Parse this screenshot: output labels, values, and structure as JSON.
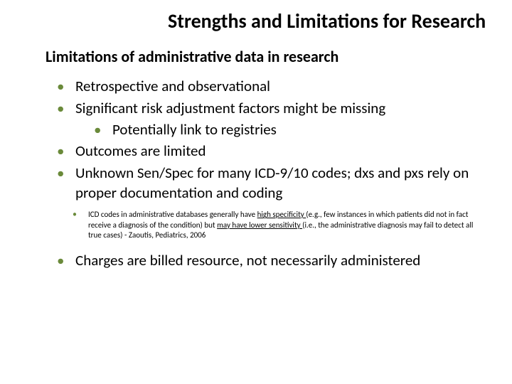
{
  "title": "Strengths and Limitations for Research",
  "subtitle": "Limitations of administrative data in research",
  "bullets": {
    "b1": "Retrospective and observational",
    "b2": "Significant risk adjustment factors might be missing",
    "b2_sub": "Potentially link to registries",
    "b3": "Outcomes are limited",
    "b4": "Unknown Sen/Spec for many ICD-9/10 codes; dxs and pxs rely on proper documentation and coding",
    "note_pre": "ICD codes in administrative databases generally have ",
    "note_u1": "high specificity ",
    "note_mid": "(e.g., few instances in which patients did not in fact receive a diagnosis of the condition) but ",
    "note_u2": "may have lower sensitivity ",
    "note_post": "(i.e., the administrative diagnosis may fail to detect all true cases) - Zaoutis, Pediatrics, 2006",
    "b5": "Charges are billed resource, not necessarily administered"
  },
  "style": {
    "bullet_color": "#6a8a3a",
    "title_fontsize": 28,
    "subtitle_fontsize": 22,
    "body_fontsize": 21,
    "note_fontsize": 11,
    "background": "#ffffff"
  }
}
